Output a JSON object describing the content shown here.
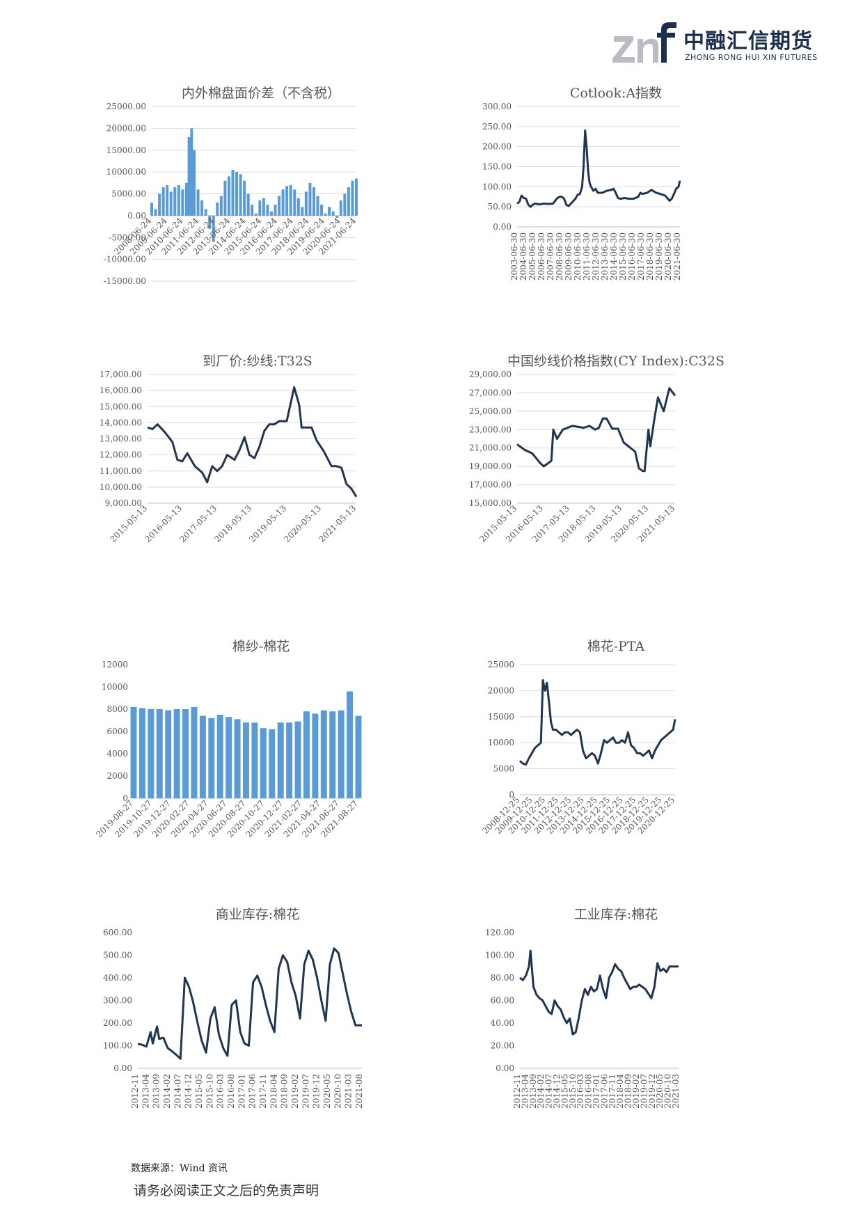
{
  "header": {
    "logo_text_cn": "中融汇信期货",
    "logo_text_en": "ZHONG RONG HUI XIN FUTURES",
    "logo_mark": "znf-logo",
    "brand_colors": {
      "navy": "#1d2f4e",
      "grey": "#b9bdc3"
    }
  },
  "colors": {
    "line": "#1f3550",
    "bar": "#5b9bd5",
    "grid": "#d9d9d9"
  },
  "chart_data": [
    {
      "type": "bar",
      "title": "内外棉盘面价差（不含税）",
      "x_ticks": [
        "2008-06-24",
        "2009-06-24",
        "2010-06-24",
        "2011-06-24",
        "2012-06-24",
        "2013-06-24",
        "2014-06-24",
        "2015-06-24",
        "2016-06-24",
        "2017-06-24",
        "2018-06-24",
        "2019-06-24",
        "2020-06-24",
        "2021-06-24"
      ],
      "y_ticks": [
        "25000.00",
        "20000.00",
        "15000.00",
        "10000.00",
        "5000.00",
        "0.00",
        "-5000.00",
        "-10000.00",
        "-15000.00"
      ],
      "ylim": [
        -15000,
        25000
      ],
      "x": [
        "2008-06",
        "2008-09",
        "2008-12",
        "2009-03",
        "2009-06",
        "2009-09",
        "2009-12",
        "2010-03",
        "2010-06",
        "2010-09",
        "2010-11",
        "2011-01",
        "2011-03",
        "2011-06",
        "2011-09",
        "2011-12",
        "2012-03",
        "2012-06",
        "2012-09",
        "2012-12",
        "2013-03",
        "2013-06",
        "2013-09",
        "2013-12",
        "2014-03",
        "2014-06",
        "2014-09",
        "2014-12",
        "2015-03",
        "2015-06",
        "2015-09",
        "2015-12",
        "2016-03",
        "2016-06",
        "2016-09",
        "2016-12",
        "2017-03",
        "2017-06",
        "2017-09",
        "2017-12",
        "2018-03",
        "2018-06",
        "2018-09",
        "2018-12",
        "2019-03",
        "2019-06",
        "2019-09",
        "2019-12",
        "2020-03",
        "2020-06",
        "2020-09",
        "2020-12",
        "2021-03",
        "2021-06",
        "2021-09"
      ],
      "values": [
        3000,
        1500,
        5000,
        6500,
        7000,
        5500,
        6500,
        7000,
        6000,
        7500,
        18000,
        20000,
        15000,
        6000,
        3500,
        1500,
        -3000,
        -6000,
        3000,
        4500,
        8000,
        9000,
        10500,
        10000,
        9500,
        8000,
        5000,
        2500,
        500,
        3500,
        4000,
        2500,
        1000,
        2500,
        4500,
        6000,
        6800,
        7000,
        6000,
        4000,
        2000,
        5500,
        7500,
        6500,
        4500,
        2500,
        500,
        2000,
        1000,
        -500,
        3500,
        5000,
        6500,
        8000,
        8500
      ]
    },
    {
      "type": "line",
      "title": "Cotlook:A指数",
      "x_ticks": [
        "2003-06-30",
        "2004-06-30",
        "2005-06-30",
        "2006-06-30",
        "2007-06-30",
        "2008-06-30",
        "2009-06-30",
        "2010-06-30",
        "2011-06-30",
        "2012-06-30",
        "2013-06-30",
        "2014-06-30",
        "2015-06-30",
        "2016-06-30",
        "2017-06-30",
        "2018-06-30",
        "2019-06-30",
        "2020-06-30",
        "2021-06-30"
      ],
      "y_ticks": [
        "300.00",
        "250.00",
        "200.00",
        "150.00",
        "100.00",
        "50.00",
        "0.00"
      ],
      "ylim": [
        0,
        300
      ],
      "x": [
        "2003-06",
        "2003-09",
        "2003-12",
        "2004-03",
        "2004-06",
        "2004-09",
        "2004-12",
        "2005-03",
        "2005-06",
        "2005-12",
        "2006-06",
        "2006-12",
        "2007-06",
        "2007-12",
        "2008-03",
        "2008-06",
        "2008-09",
        "2008-12",
        "2009-03",
        "2009-06",
        "2009-12",
        "2010-03",
        "2010-06",
        "2010-09",
        "2010-11",
        "2011-01",
        "2011-03",
        "2011-05",
        "2011-07",
        "2011-09",
        "2011-12",
        "2012-03",
        "2012-06",
        "2012-12",
        "2013-06",
        "2013-12",
        "2014-03",
        "2014-06",
        "2014-09",
        "2014-12",
        "2015-06",
        "2015-12",
        "2016-06",
        "2016-12",
        "2017-03",
        "2017-06",
        "2017-12",
        "2018-06",
        "2018-12",
        "2019-06",
        "2019-12",
        "2020-03",
        "2020-06",
        "2020-09",
        "2020-12",
        "2021-03",
        "2021-06",
        "2021-08"
      ],
      "values": [
        58,
        62,
        78,
        72,
        70,
        55,
        50,
        55,
        58,
        56,
        58,
        57,
        58,
        72,
        75,
        75,
        70,
        55,
        52,
        58,
        70,
        80,
        82,
        100,
        150,
        240,
        200,
        140,
        110,
        100,
        90,
        95,
        85,
        85,
        90,
        92,
        95,
        85,
        72,
        70,
        72,
        70,
        70,
        75,
        85,
        82,
        85,
        92,
        85,
        82,
        78,
        72,
        65,
        70,
        82,
        95,
        100,
        115
      ]
    },
    {
      "type": "line",
      "title": "到厂价:纱线:T32S",
      "x_ticks": [
        "2015-05-13",
        "2016-05-13",
        "2017-05-13",
        "2018-05-13",
        "2019-05-13",
        "2020-05-13",
        "2021-05-13"
      ],
      "y_ticks": [
        "17,000.00",
        "16,000.00",
        "15,000.00",
        "14,000.00",
        "13,000.00",
        "12,000.00",
        "11,000.00",
        "10,000.00",
        "9,000.00"
      ],
      "ylim": [
        9000,
        17000
      ],
      "x": [
        "2015-01",
        "2015-03",
        "2015-05",
        "2015-08",
        "2015-11",
        "2016-01",
        "2016-03",
        "2016-05",
        "2016-08",
        "2016-11",
        "2017-01",
        "2017-03",
        "2017-05",
        "2017-07",
        "2017-09",
        "2017-12",
        "2018-02",
        "2018-04",
        "2018-06",
        "2018-08",
        "2018-10",
        "2018-12",
        "2019-02",
        "2019-04",
        "2019-06",
        "2019-09",
        "2019-12",
        "2020-02",
        "2020-03",
        "2020-05",
        "2020-07",
        "2020-09",
        "2020-12",
        "2021-03",
        "2021-05",
        "2021-07",
        "2021-09",
        "2021-11",
        "2022-01"
      ],
      "values": [
        13700,
        13600,
        13900,
        13400,
        12800,
        11700,
        11600,
        12100,
        11300,
        10900,
        10300,
        11300,
        11000,
        11300,
        12000,
        11700,
        12300,
        13100,
        12000,
        11800,
        12500,
        13500,
        13900,
        13900,
        14100,
        14100,
        16200,
        15100,
        13700,
        13700,
        13700,
        12900,
        12200,
        11300,
        11300,
        11200,
        10200,
        9900,
        9400
      ]
    },
    {
      "type": "line",
      "title": "中国纱线价格指数(CY Index):C32S",
      "x_ticks": [
        "2015-05-13",
        "2016-05-13",
        "2017-05-13",
        "2018-05-13",
        "2019-05-13",
        "2020-05-13",
        "2021-05-13"
      ],
      "y_ticks": [
        "29,000.00",
        "27,000.00",
        "25,000.00",
        "23,000.00",
        "21,000.00",
        "19,000.00",
        "17,000.00",
        "15,000.00"
      ],
      "ylim": [
        15000,
        29000
      ],
      "x": [
        "2015-01",
        "2015-05",
        "2015-09",
        "2016-01",
        "2016-03",
        "2016-07",
        "2016-08",
        "2016-10",
        "2017-01",
        "2017-06",
        "2017-12",
        "2018-03",
        "2018-06",
        "2018-08",
        "2018-10",
        "2018-12",
        "2019-03",
        "2019-06",
        "2019-09",
        "2019-12",
        "2020-03",
        "2020-05",
        "2020-07",
        "2020-08",
        "2020-10",
        "2020-11",
        "2021-01",
        "2021-03",
        "2021-06",
        "2021-09",
        "2021-12"
      ],
      "values": [
        21400,
        20800,
        20400,
        19400,
        19000,
        19600,
        23000,
        22000,
        23000,
        23400,
        23200,
        23400,
        23000,
        23200,
        24200,
        24200,
        23100,
        23100,
        21600,
        21100,
        20600,
        18800,
        18500,
        18500,
        23000,
        21200,
        24000,
        26500,
        25000,
        27500,
        26700
      ]
    },
    {
      "type": "bar",
      "title": "棉纱-棉花",
      "x_ticks": [
        "2019-08-27",
        "2019-10-27",
        "2019-12-27",
        "2020-02-27",
        "2020-04-27",
        "2020-06-27",
        "2020-08-27",
        "2020-10-27",
        "2020-12-27",
        "2021-02-27",
        "2021-04-27",
        "2021-06-27",
        "2021-08-27"
      ],
      "y_ticks": [
        "12000",
        "10000",
        "8000",
        "6000",
        "4000",
        "2000",
        "0"
      ],
      "ylim": [
        0,
        12000
      ],
      "x": [
        "2019-08",
        "2019-09",
        "2019-10",
        "2019-11",
        "2019-12",
        "2020-01",
        "2020-02",
        "2020-03",
        "2020-04",
        "2020-05",
        "2020-06",
        "2020-07",
        "2020-08",
        "2020-09",
        "2020-10",
        "2020-11",
        "2020-12",
        "2021-01",
        "2021-02",
        "2021-03",
        "2021-04",
        "2021-05",
        "2021-06",
        "2021-07",
        "2021-08",
        "2021-09",
        "2021-10"
      ],
      "values": [
        8200,
        8100,
        8000,
        8000,
        7900,
        8000,
        8000,
        8200,
        7400,
        7200,
        7500,
        7300,
        7100,
        6800,
        6800,
        6300,
        6200,
        6800,
        6800,
        6900,
        7800,
        7600,
        7900,
        7800,
        7900,
        9600,
        7400
      ]
    },
    {
      "type": "line",
      "title": "棉花-PTA",
      "x_ticks": [
        "2008-12-25",
        "2009-12-25",
        "2010-12-25",
        "2011-12-25",
        "2012-12-25",
        "2013-12-25",
        "2014-12-25",
        "2015-12-25",
        "2016-12-25",
        "2017-12-25",
        "2018-12-25",
        "2019-12-25",
        "2020-12-25"
      ],
      "y_ticks": [
        "25000",
        "20000",
        "15000",
        "10000",
        "5000",
        "0"
      ],
      "ylim": [
        0,
        25000
      ],
      "x": [
        "2008-12",
        "2009-03",
        "2009-06",
        "2009-09",
        "2009-12",
        "2010-03",
        "2010-06",
        "2010-09",
        "2010-11",
        "2011-01",
        "2011-03",
        "2011-05",
        "2011-07",
        "2011-09",
        "2011-12",
        "2012-03",
        "2012-06",
        "2012-09",
        "2012-12",
        "2013-03",
        "2013-06",
        "2013-09",
        "2013-12",
        "2014-03",
        "2014-06",
        "2014-09",
        "2014-12",
        "2015-03",
        "2015-06",
        "2015-09",
        "2015-12",
        "2016-03",
        "2016-06",
        "2016-09",
        "2016-12",
        "2017-03",
        "2017-06",
        "2017-09",
        "2017-12",
        "2018-03",
        "2018-06",
        "2018-09",
        "2018-12",
        "2019-03",
        "2019-06",
        "2019-09",
        "2019-12",
        "2020-03",
        "2020-06",
        "2020-09",
        "2020-12",
        "2021-03",
        "2021-06",
        "2021-09",
        "2021-11"
      ],
      "values": [
        6500,
        6000,
        5800,
        7000,
        8000,
        9000,
        9500,
        10000,
        22000,
        20000,
        21500,
        18000,
        14000,
        12500,
        12500,
        12000,
        11500,
        12000,
        12000,
        11500,
        12000,
        12500,
        12000,
        8500,
        7000,
        7500,
        8000,
        7500,
        6000,
        8000,
        10500,
        10000,
        10500,
        11000,
        10000,
        10000,
        10500,
        10000,
        12000,
        9500,
        9000,
        8000,
        8000,
        7500,
        8000,
        8500,
        7000,
        8500,
        9500,
        10500,
        11000,
        11500,
        12000,
        12500,
        14500
      ]
    },
    {
      "type": "line",
      "title": "商业库存:棉花",
      "x_ticks": [
        "2012-11",
        "2013-04",
        "2013-09",
        "2014-02",
        "2014-07",
        "2014-12",
        "2015-05",
        "2015-10",
        "2016-03",
        "2016-08",
        "2017-01",
        "2017-06",
        "2017-11",
        "2018-04",
        "2018-09",
        "2019-02",
        "2019-07",
        "2019-12",
        "2020-05",
        "2020-10",
        "2021-03",
        "2021-08"
      ],
      "y_ticks": [
        "600.00",
        "500.00",
        "400.00",
        "300.00",
        "200.00",
        "100.00",
        "0.00"
      ],
      "ylim": [
        0,
        600
      ],
      "x": [
        "2012-11",
        "2013-01",
        "2013-03",
        "2013-05",
        "2013-06",
        "2013-08",
        "2013-09",
        "2013-11",
        "2014-01",
        "2014-03",
        "2014-05",
        "2014-07",
        "2014-09",
        "2014-11",
        "2015-01",
        "2015-03",
        "2015-05",
        "2015-07",
        "2015-09",
        "2015-11",
        "2016-01",
        "2016-03",
        "2016-05",
        "2016-07",
        "2016-09",
        "2016-11",
        "2017-01",
        "2017-03",
        "2017-05",
        "2017-07",
        "2017-09",
        "2017-11",
        "2018-01",
        "2018-03",
        "2018-05",
        "2018-07",
        "2018-09",
        "2018-11",
        "2019-01",
        "2019-03",
        "2019-05",
        "2019-07",
        "2019-09",
        "2019-11",
        "2020-01",
        "2020-03",
        "2020-05",
        "2020-07",
        "2020-09",
        "2020-11",
        "2021-01",
        "2021-03",
        "2021-05",
        "2021-07",
        "2021-08"
      ],
      "values": [
        108,
        104,
        96,
        160,
        110,
        185,
        130,
        135,
        90,
        75,
        60,
        42,
        400,
        360,
        290,
        200,
        120,
        70,
        220,
        270,
        150,
        90,
        55,
        280,
        300,
        160,
        110,
        100,
        380,
        410,
        360,
        280,
        210,
        160,
        440,
        500,
        470,
        380,
        320,
        220,
        460,
        520,
        480,
        400,
        300,
        210,
        460,
        530,
        510,
        420,
        330,
        250,
        190,
        190,
        190
      ]
    },
    {
      "type": "line",
      "title": "工业库存:棉花",
      "x_ticks": [
        "2012-11",
        "2013-04",
        "2013-09",
        "2014-02",
        "2014-07",
        "2014-12",
        "2015-05",
        "2015-10",
        "2016-03",
        "2016-08",
        "2017-01",
        "2017-06",
        "2017-11",
        "2018-04",
        "2018-09",
        "2019-02",
        "2019-07",
        "2019-12",
        "2020-05",
        "2020-10",
        "2021-03"
      ],
      "y_ticks": [
        "120.00",
        "100.00",
        "80.00",
        "60.00",
        "40.00",
        "20.00",
        "0.00"
      ],
      "ylim": [
        0,
        120
      ],
      "x": [
        "2012-11",
        "2013-01",
        "2013-03",
        "2013-05",
        "2013-06",
        "2013-08",
        "2013-10",
        "2013-12",
        "2014-02",
        "2014-04",
        "2014-06",
        "2014-08",
        "2014-10",
        "2014-12",
        "2015-02",
        "2015-04",
        "2015-06",
        "2015-08",
        "2015-10",
        "2015-12",
        "2016-02",
        "2016-04",
        "2016-06",
        "2016-08",
        "2016-10",
        "2016-12",
        "2017-02",
        "2017-04",
        "2017-06",
        "2017-08",
        "2017-10",
        "2017-12",
        "2018-02",
        "2018-04",
        "2018-06",
        "2018-08",
        "2018-10",
        "2018-12",
        "2019-02",
        "2019-04",
        "2019-06",
        "2019-08",
        "2019-10",
        "2019-12",
        "2020-02",
        "2020-04",
        "2020-06",
        "2020-08",
        "2020-10",
        "2020-12",
        "2021-02",
        "2021-04",
        "2021-06",
        "2021-08"
      ],
      "values": [
        80,
        78,
        82,
        90,
        104,
        72,
        65,
        62,
        60,
        55,
        50,
        48,
        60,
        55,
        52,
        45,
        40,
        44,
        30,
        32,
        45,
        60,
        70,
        65,
        72,
        68,
        70,
        82,
        70,
        62,
        80,
        85,
        92,
        88,
        86,
        80,
        75,
        70,
        72,
        72,
        74,
        72,
        70,
        66,
        62,
        72,
        93,
        86,
        88,
        85,
        90,
        90,
        90,
        90
      ]
    }
  ],
  "footer": {
    "source": "数据来源：Wind 资讯",
    "disclaimer": "请务必阅读正文之后的免责声明"
  }
}
